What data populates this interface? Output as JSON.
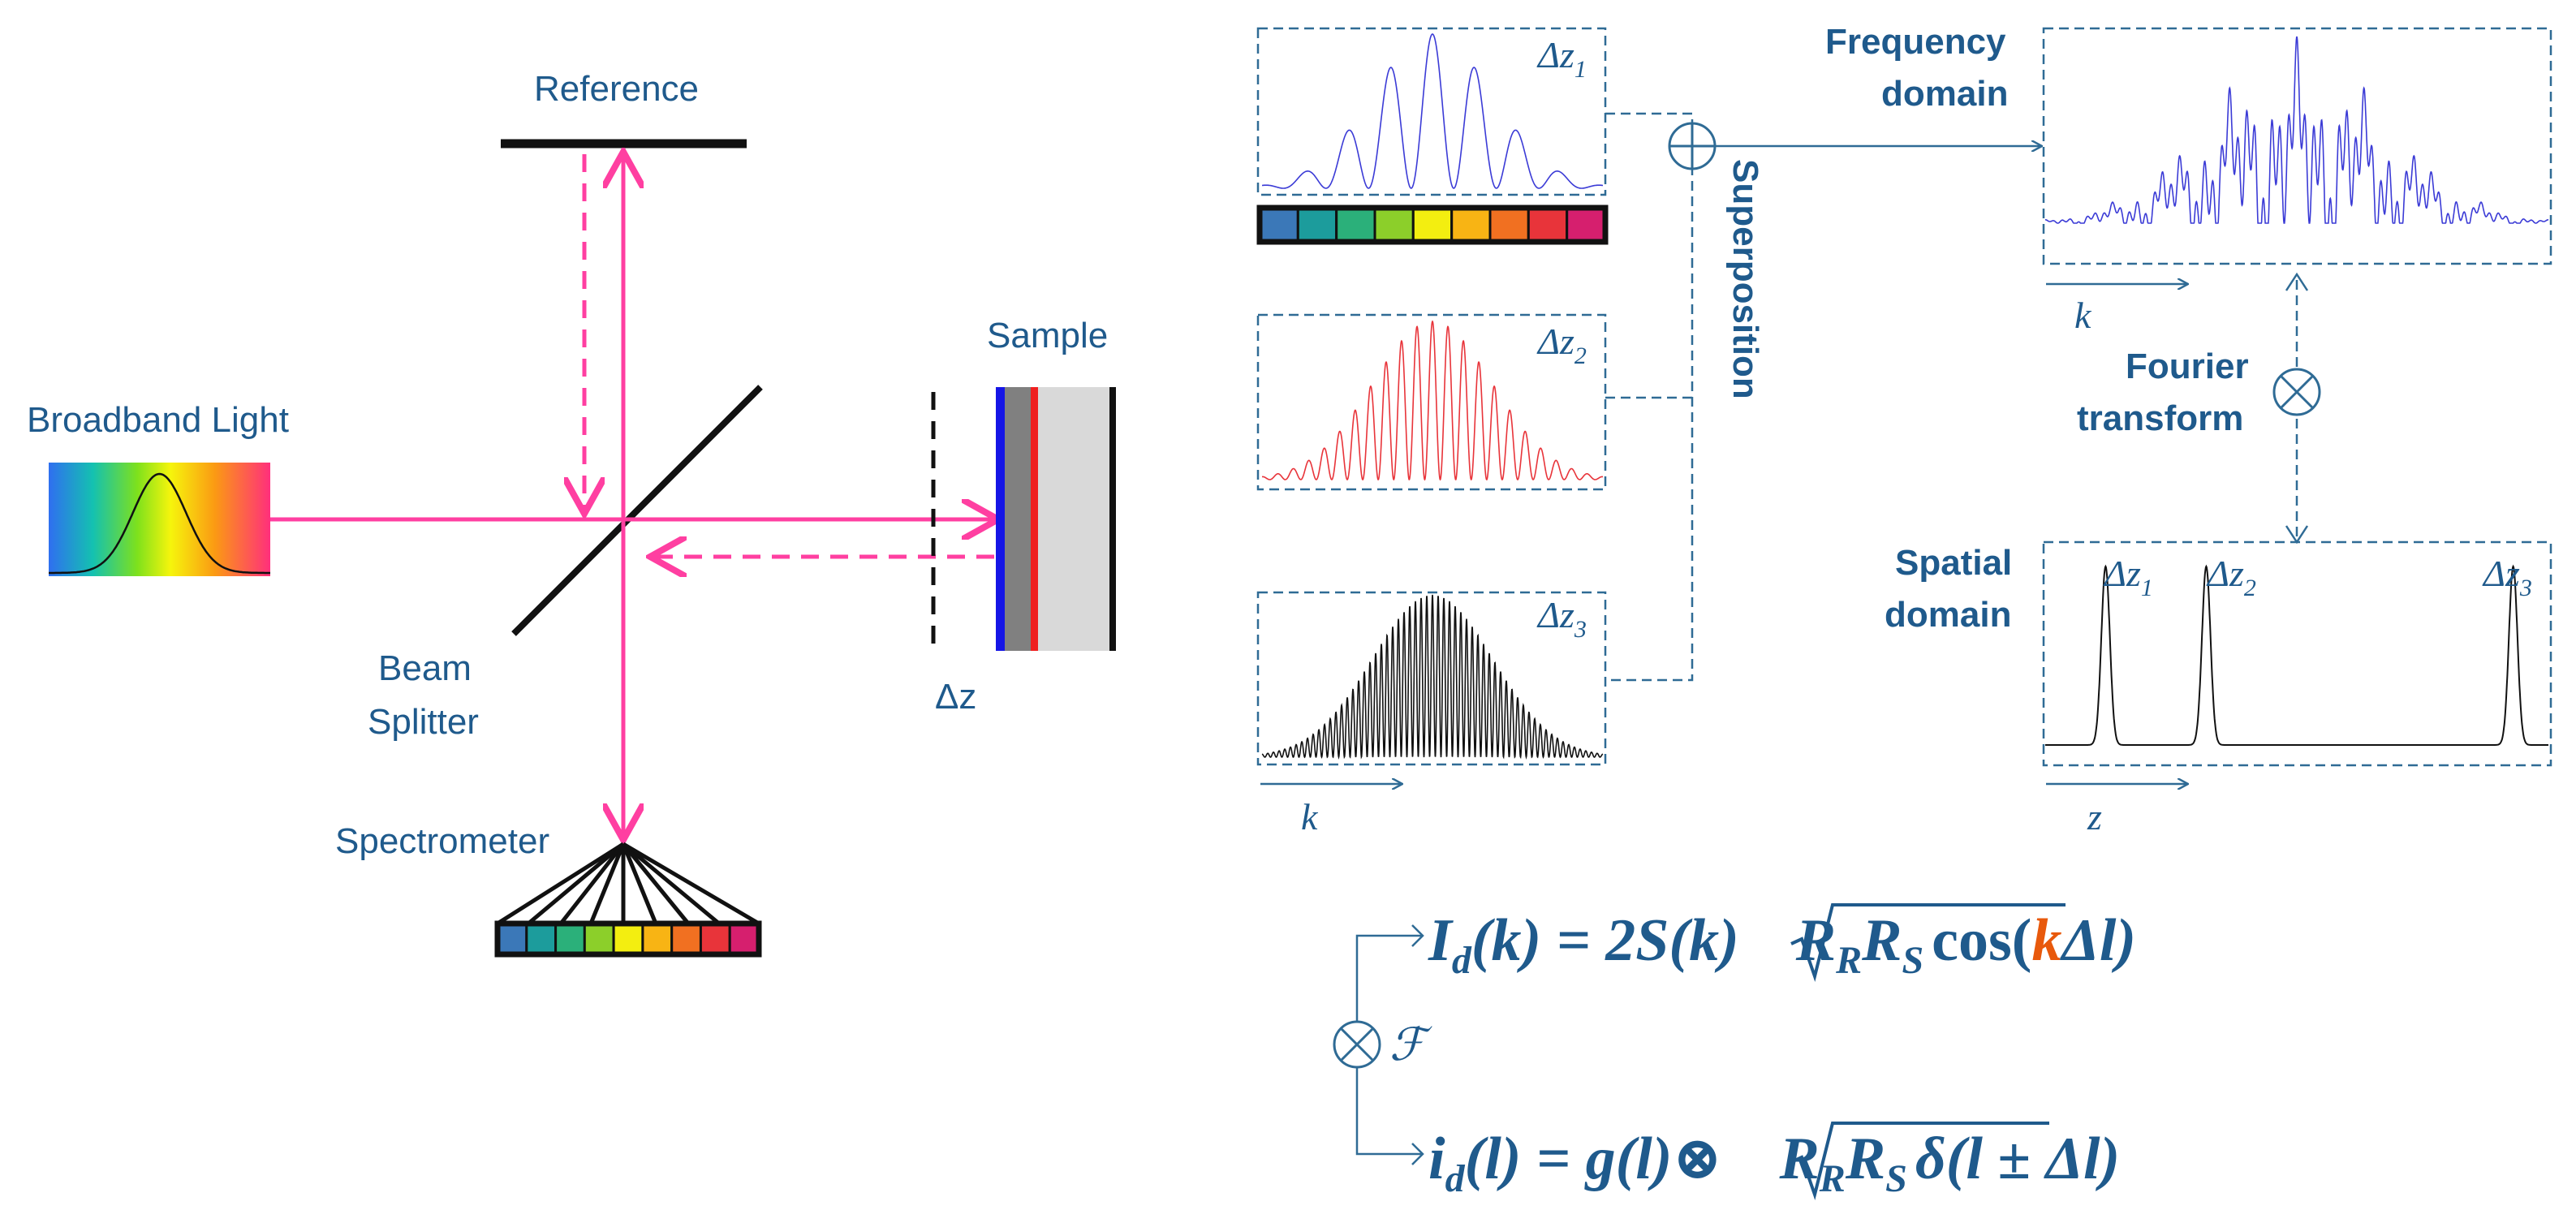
{
  "labels": {
    "reference": "Reference",
    "sample": "Sample",
    "broadband_light": "Broadband Light",
    "beam": "Beam",
    "splitter": "Splitter",
    "delta_z": "Δz",
    "spectrometer": "Spectrometer",
    "superposition": "Superposition",
    "frequency": "Frequency",
    "domain": "domain",
    "fourier": "Fourier",
    "transform": "transform",
    "spatial": "Spatial",
    "k_axis": "k",
    "z_axis": "z",
    "dz_base": "Δz",
    "dz1_sub": "1",
    "dz2_sub": "2",
    "dz3_sub": "3",
    "superposition_symbol": "⊕",
    "convolution_symbol": "⊗",
    "fourier_symbol": "ℱ"
  },
  "equations": {
    "eq1_lhs": "I",
    "eq1_lhs_sub": "d",
    "eq1_mid": "(k) = 2S(k)",
    "eq1_sqrt_r": "R",
    "eq1_sqrt_sub1": "R",
    "eq1_sqrt_r2": "R",
    "eq1_sqrt_sub2": "S",
    "eq1_cos": "cos(",
    "eq1_k": "k",
    "eq1_end": "Δl)",
    "eq2_lhs": "i",
    "eq2_lhs_sub": "d",
    "eq2_mid": "(l) = g(l)⊗",
    "eq2_sqrt_r": "R",
    "eq2_sqrt_sub1": "R",
    "eq2_sqrt_r2": "R",
    "eq2_sqrt_sub2": "S",
    "eq2_end": "δ(l ± Δl)"
  },
  "colors": {
    "beam": "#ff3fa1",
    "text": "#1f5a8c",
    "signal_1": "#3b3bd6",
    "signal_2": "#e8343a",
    "signal_3": "#111111",
    "combined": "#3b3bd6",
    "highlight_k": "#e8590c"
  },
  "spectrum_colors": [
    "#3b78b8",
    "#1c9c9c",
    "#2bb07a",
    "#8ccf2a",
    "#f3ee10",
    "#f8b414",
    "#f17021",
    "#e8343a",
    "#d61f6e"
  ],
  "signals": {
    "dz1_fringe_cycles": 8,
    "dz2_fringe_cycles": 22,
    "dz3_fringe_cycles": 60,
    "spatial_peak_positions": [
      0.12,
      0.32,
      0.93
    ]
  }
}
